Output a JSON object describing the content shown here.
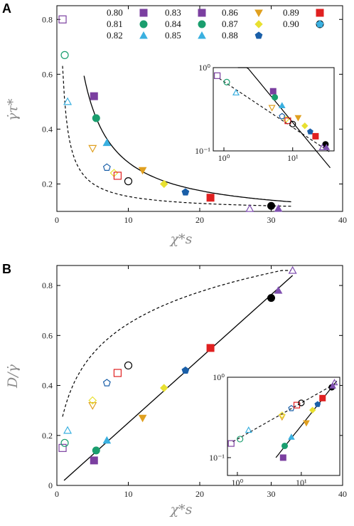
{
  "panels": {
    "A": {
      "letter": "A",
      "ylabel": "γ̇τ*",
      "xlabel": "χ*s"
    },
    "B": {
      "letter": "B",
      "ylabel": "D/γ̇",
      "xlabel": "χ*s"
    }
  },
  "legend": [
    {
      "label": "0.80",
      "color": "#7b3fa0",
      "marker": "square"
    },
    {
      "label": "0.81",
      "color": "#1a9e6e",
      "marker": "circle"
    },
    {
      "label": "0.82",
      "color": "#3ab0e0",
      "marker": "triangle-up"
    },
    {
      "label": "0.83",
      "color": "#7b3fa0",
      "marker": "square"
    },
    {
      "label": "0.84",
      "color": "#1a9e6e",
      "marker": "circle"
    },
    {
      "label": "0.85",
      "color": "#3ab0e0",
      "marker": "triangle-up"
    },
    {
      "label": "0.86",
      "color": "#e0a020",
      "marker": "triangle-down"
    },
    {
      "label": "0.87",
      "color": "#e8e030",
      "marker": "diamond"
    },
    {
      "label": "0.88",
      "color": "#1a5fa8",
      "marker": "pentagon"
    },
    {
      "label": "0.89",
      "color": "#e02020",
      "marker": "square"
    },
    {
      "label": "0.90",
      "color": "#000000",
      "marker": "circle"
    },
    {
      "label": "",
      "color": "#7b3fa0",
      "marker": "triangle-up"
    },
    {
      "label": "",
      "color": "#1a9e6e",
      "marker": "triangle-down"
    },
    {
      "label": "",
      "color": "#3ab0e0",
      "marker": "pentagon"
    }
  ],
  "chart_data": [
    {
      "type": "scatter",
      "panel": "A",
      "xlabel": "χ*s",
      "ylabel": "γ̇τ*",
      "xlim": [
        0,
        40
      ],
      "ylim": [
        0.1,
        0.85
      ],
      "xticks": [
        "0",
        "10",
        "20",
        "30",
        "40"
      ],
      "yticks": [
        "0.2",
        "0.4",
        "0.6",
        "0.8"
      ],
      "series": [
        {
          "name": "0.80",
          "filled": [
            [
              5.2,
              0.52
            ]
          ],
          "open": [
            [
              0.8,
              0.8
            ]
          ]
        },
        {
          "name": "0.81",
          "filled": [
            [
              5.5,
              0.44
            ]
          ],
          "open": [
            [
              1.1,
              0.67
            ]
          ]
        },
        {
          "name": "0.82",
          "filled": [
            [
              7,
              0.35
            ]
          ],
          "open": [
            [
              1.5,
              0.5
            ]
          ]
        },
        {
          "name": "0.86",
          "filled": [
            [
              12,
              0.25
            ]
          ],
          "open": [
            [
              5,
              0.33
            ]
          ]
        },
        {
          "name": "0.87",
          "filled": [
            [
              15,
              0.2
            ]
          ],
          "open": [
            [
              8,
              0.24
            ]
          ]
        },
        {
          "name": "0.88",
          "filled": [
            [
              18,
              0.17
            ]
          ],
          "open": [
            [
              7,
              0.26
            ]
          ]
        },
        {
          "name": "0.89",
          "filled": [
            [
              21.5,
              0.15
            ]
          ],
          "open": [
            [
              8.5,
              0.23
            ]
          ]
        },
        {
          "name": "0.90",
          "filled": [
            [
              30,
              0.12
            ]
          ],
          "open": [
            [
              10,
              0.21
            ]
          ]
        },
        {
          "name": "",
          "filled": [
            [
              31,
              0.11
            ]
          ],
          "open": [
            [
              27,
              0.11
            ]
          ]
        }
      ],
      "curves": [
        {
          "style": "solid"
        },
        {
          "style": "dashed"
        }
      ],
      "inset": {
        "xscale": "log",
        "yscale": "log",
        "xticks": [
          "10^0",
          "10^1"
        ],
        "yticks": [
          "10^-1",
          "10^0"
        ],
        "xlim": [
          0.7,
          40
        ],
        "ylim": [
          0.1,
          1
        ]
      }
    },
    {
      "type": "scatter",
      "panel": "B",
      "xlabel": "χ*s",
      "ylabel": "D/γ̇",
      "xlim": [
        0,
        40
      ],
      "ylim": [
        0,
        0.88
      ],
      "xticks": [
        "0",
        "10",
        "20",
        "30",
        "40"
      ],
      "yticks": [
        "0",
        "0.2",
        "0.4",
        "0.6",
        "0.8"
      ],
      "series": [
        {
          "name": "0.80",
          "filled": [
            [
              5.2,
              0.1
            ]
          ],
          "open": [
            [
              0.8,
              0.15
            ]
          ]
        },
        {
          "name": "0.81",
          "filled": [
            [
              5.5,
              0.14
            ]
          ],
          "open": [
            [
              1.1,
              0.17
            ]
          ]
        },
        {
          "name": "0.82",
          "filled": [
            [
              7,
              0.18
            ]
          ],
          "open": [
            [
              1.5,
              0.22
            ]
          ]
        },
        {
          "name": "0.86",
          "filled": [
            [
              12,
              0.27
            ]
          ],
          "open": [
            [
              5,
              0.32
            ]
          ]
        },
        {
          "name": "0.87",
          "filled": [
            [
              15,
              0.39
            ]
          ],
          "open": [
            [
              5,
              0.34
            ]
          ]
        },
        {
          "name": "0.88",
          "filled": [
            [
              18,
              0.46
            ]
          ],
          "open": [
            [
              7,
              0.41
            ]
          ]
        },
        {
          "name": "0.89",
          "filled": [
            [
              21.5,
              0.55
            ]
          ],
          "open": [
            [
              8.5,
              0.45
            ]
          ]
        },
        {
          "name": "0.90",
          "filled": [
            [
              30,
              0.75
            ]
          ],
          "open": [
            [
              10,
              0.48
            ]
          ]
        },
        {
          "name": "",
          "filled": [
            [
              31,
              0.78
            ]
          ],
          "open": [
            [
              33,
              0.86
            ]
          ]
        }
      ],
      "curves": [
        {
          "style": "solid"
        },
        {
          "style": "dashed"
        }
      ],
      "inset": {
        "xscale": "log",
        "yscale": "log",
        "xticks": [
          "10^0",
          "10^1"
        ],
        "yticks": [
          "10^-1",
          "10^0"
        ],
        "xlim": [
          0.7,
          40
        ],
        "ylim": [
          0.06,
          1
        ]
      }
    }
  ]
}
